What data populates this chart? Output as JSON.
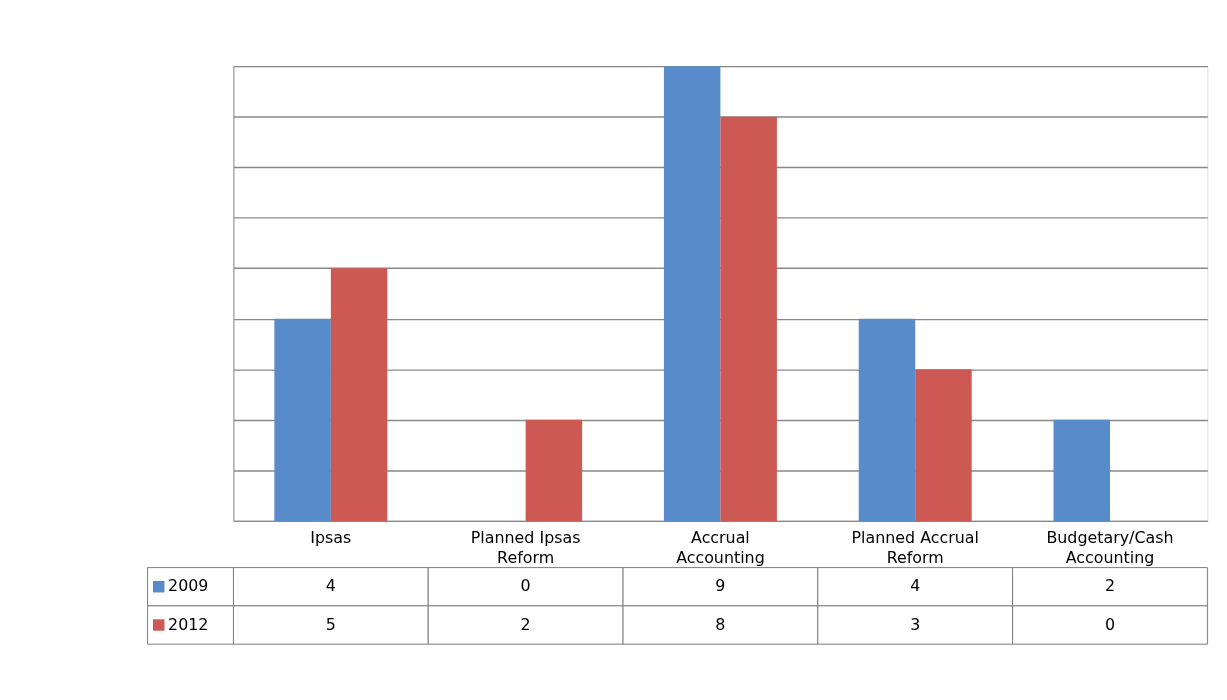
{
  "chart_data": {
    "type": "bar",
    "categories": [
      "Ipsas",
      "Planned Ipsas Reform",
      "Accrual Accounting",
      "Planned Accrual Reform",
      "Budgetary/Cash Accounting"
    ],
    "series": [
      {
        "name": "2009",
        "color": "#588bc9",
        "values": [
          4,
          0,
          9,
          4,
          2
        ]
      },
      {
        "name": "2012",
        "color": "#cc5954",
        "values": [
          5,
          2,
          8,
          3,
          0
        ]
      }
    ],
    "ylim": [
      0,
      9
    ],
    "yticks": [
      {
        "value": 0,
        "label": null
      },
      {
        "value": 1,
        "label": null
      },
      {
        "value": 2,
        "label": null
      },
      {
        "value": 3,
        "label": null
      },
      {
        "value": 4,
        "label": null
      },
      {
        "value": 5,
        "label": null
      },
      {
        "value": 6,
        "label": null
      },
      {
        "value": 7,
        "label": null
      },
      {
        "value": 8,
        "label": null
      },
      {
        "value": 9,
        "label": null
      }
    ],
    "grid": "y",
    "tick_labels": "x",
    "data_labels": true,
    "legend": "bottom left"
  }
}
